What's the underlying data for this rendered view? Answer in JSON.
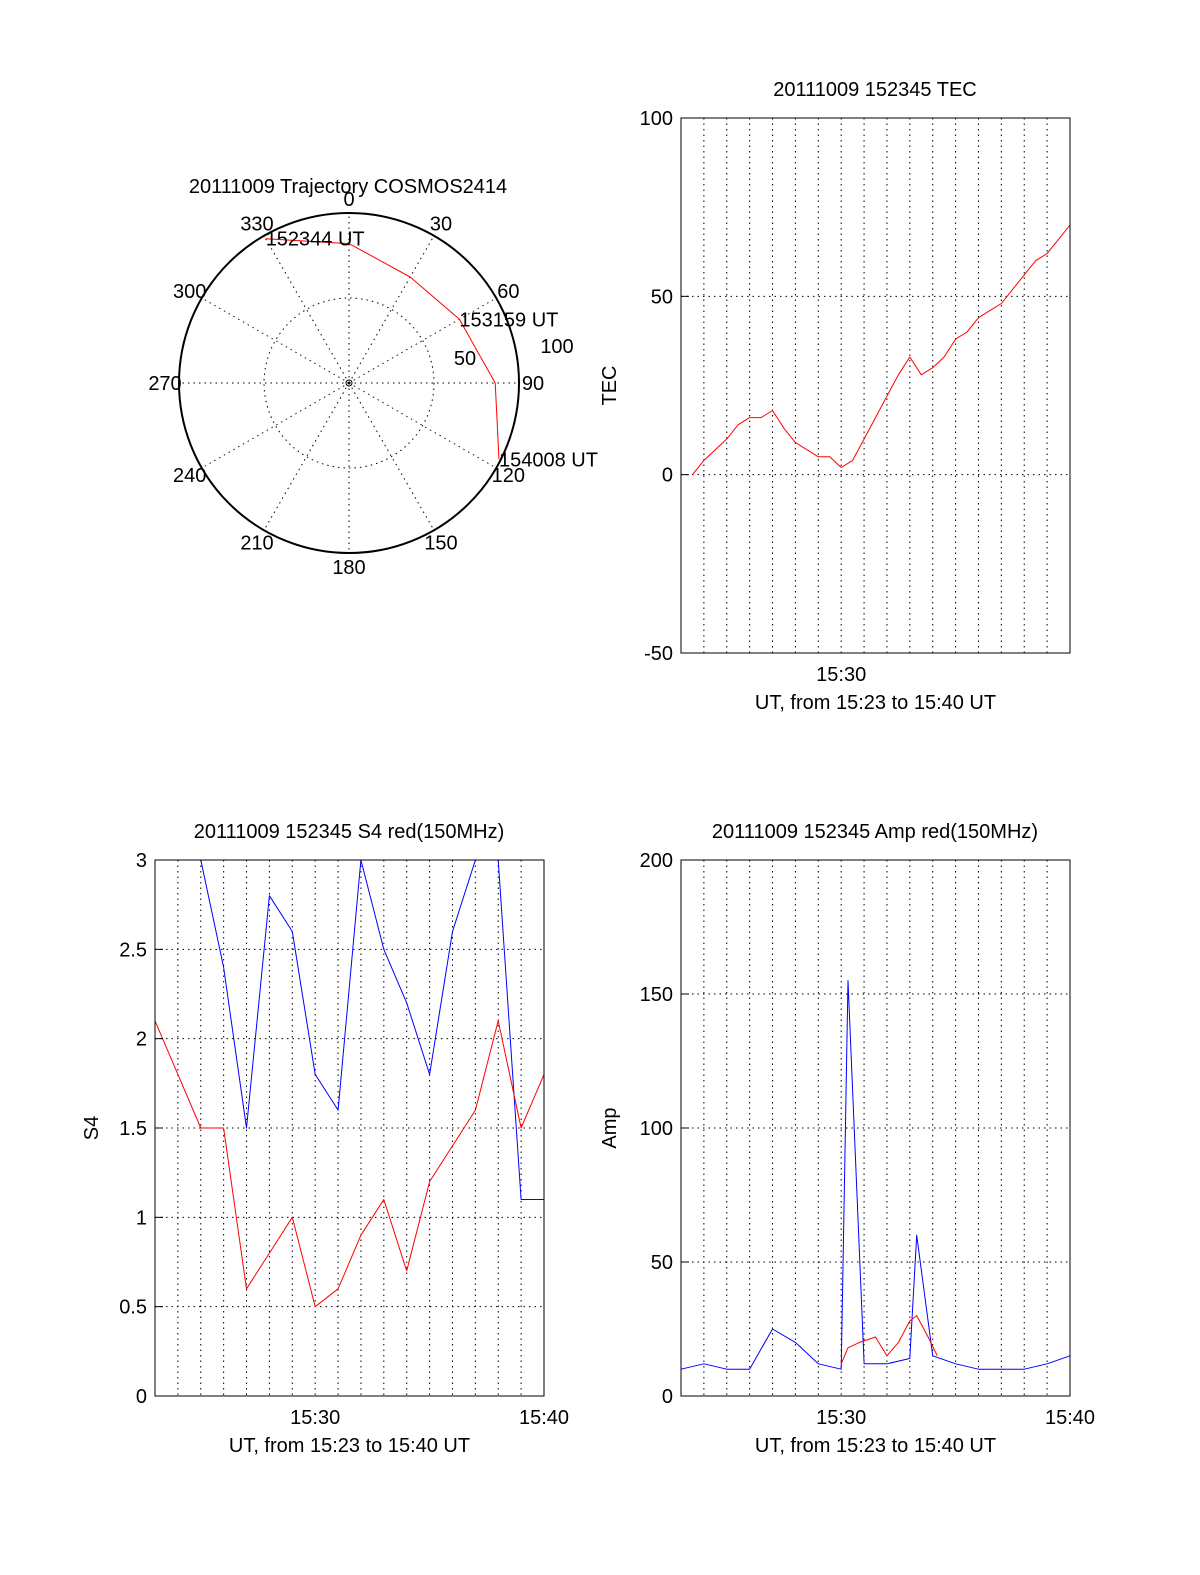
{
  "colors": {
    "red": "#ff0000",
    "blue": "#0000ff",
    "axis": "#000000",
    "background": "#ffffff"
  },
  "chart_data": [
    {
      "type": "polar",
      "title": "20111009 Trajectory COSMOS2414",
      "azimuth_labels": [
        "0",
        "30",
        "60",
        "90",
        "120",
        "150",
        "180",
        "210",
        "240",
        "270",
        "300",
        "330"
      ],
      "radial_labels": [
        "50",
        "100"
      ],
      "series": [
        {
          "color": "#ff0000",
          "points": [
            {
              "az": 330,
              "r": 98,
              "label": "152344 UT"
            },
            {
              "az": 0,
              "r": 82
            },
            {
              "az": 30,
              "r": 72
            },
            {
              "az": 60,
              "r": 75,
              "label": "153159 UT"
            },
            {
              "az": 90,
              "r": 86
            },
            {
              "az": 117,
              "r": 99,
              "label": "154008 UT"
            }
          ]
        }
      ]
    },
    {
      "type": "line",
      "title": "20111009 152345 TEC",
      "ylabel": "TEC",
      "xlabel": "UT, from 15:23 to 15:40 UT",
      "xlim": [
        0,
        17
      ],
      "ylim": [
        -50,
        100
      ],
      "yticks": [
        -50,
        0,
        50,
        100
      ],
      "xticks": [
        {
          "x": 7,
          "label": "15:30"
        }
      ],
      "series": [
        {
          "color": "#ff0000",
          "x": [
            0.5,
            1,
            1.5,
            2,
            2.5,
            3,
            3.5,
            4,
            4.5,
            5,
            5.5,
            6,
            6.5,
            7,
            7.5,
            8,
            8.5,
            9,
            9.5,
            10,
            10.5,
            11,
            11.5,
            12,
            12.5,
            13,
            13.5,
            14,
            14.5,
            15,
            15.5,
            16,
            16.5,
            17
          ],
          "y": [
            0,
            4,
            7,
            10,
            14,
            16,
            16,
            18,
            13,
            9,
            7,
            5,
            5,
            2,
            4,
            10,
            16,
            22,
            28,
            33,
            28,
            30,
            33,
            38,
            40,
            44,
            46,
            48,
            52,
            56,
            60,
            62,
            66,
            70
          ]
        }
      ]
    },
    {
      "type": "line",
      "title": "20111009 152345 S4 red(150MHz)",
      "ylabel": "S4",
      "xlabel": "UT, from 15:23 to 15:40 UT",
      "xlim": [
        0,
        17
      ],
      "ylim": [
        0,
        3
      ],
      "yticks": [
        0,
        0.5,
        1,
        1.5,
        2,
        2.5,
        3
      ],
      "xticks": [
        {
          "x": 7,
          "label": "15:30"
        },
        {
          "x": 17,
          "label": "15:40"
        }
      ],
      "series": [
        {
          "color": "#0000ff",
          "x": [
            0,
            1,
            2,
            3,
            4,
            5,
            6,
            7,
            8,
            9,
            10,
            11,
            12,
            13,
            14,
            15,
            16,
            17
          ],
          "y": [
            3,
            3,
            3,
            2.4,
            1.5,
            2.8,
            2.6,
            1.8,
            1.6,
            3,
            2.5,
            2.2,
            1.8,
            2.6,
            3,
            3,
            1.1,
            1.1
          ]
        },
        {
          "color": "#ff0000",
          "x": [
            0,
            1,
            2,
            3,
            4,
            5,
            6,
            7,
            8,
            9,
            10,
            11,
            12,
            13,
            14,
            15,
            16,
            17
          ],
          "y": [
            2.1,
            1.8,
            1.5,
            1.5,
            0.6,
            0.8,
            1.0,
            0.5,
            0.6,
            0.9,
            1.1,
            0.7,
            1.2,
            1.4,
            1.6,
            2.1,
            1.5,
            1.8
          ]
        }
      ]
    },
    {
      "type": "line",
      "title": "20111009 152345 Amp red(150MHz)",
      "ylabel": "Amp",
      "xlabel": "UT, from 15:23 to 15:40 UT",
      "xlim": [
        0,
        17
      ],
      "ylim": [
        0,
        200
      ],
      "yticks": [
        0,
        50,
        100,
        150,
        200
      ],
      "xticks": [
        {
          "x": 7,
          "label": "15:30"
        },
        {
          "x": 17,
          "label": "15:40"
        }
      ],
      "series": [
        {
          "color": "#0000ff",
          "x": [
            0,
            1,
            2,
            3,
            4,
            5,
            6,
            7,
            7.3,
            8,
            9,
            10,
            10.3,
            11,
            12,
            13,
            14,
            15,
            16,
            17
          ],
          "y": [
            10,
            12,
            10,
            10,
            25,
            20,
            12,
            10,
            155,
            12,
            12,
            14,
            60,
            15,
            12,
            10,
            10,
            10,
            12,
            15
          ]
        },
        {
          "color": "#ff0000",
          "x": [
            7,
            7.3,
            7.8,
            8.5,
            9,
            9.5,
            10,
            10.3,
            10.8,
            11.2
          ],
          "y": [
            12,
            18,
            20,
            22,
            15,
            20,
            28,
            30,
            22,
            15
          ]
        }
      ]
    }
  ]
}
